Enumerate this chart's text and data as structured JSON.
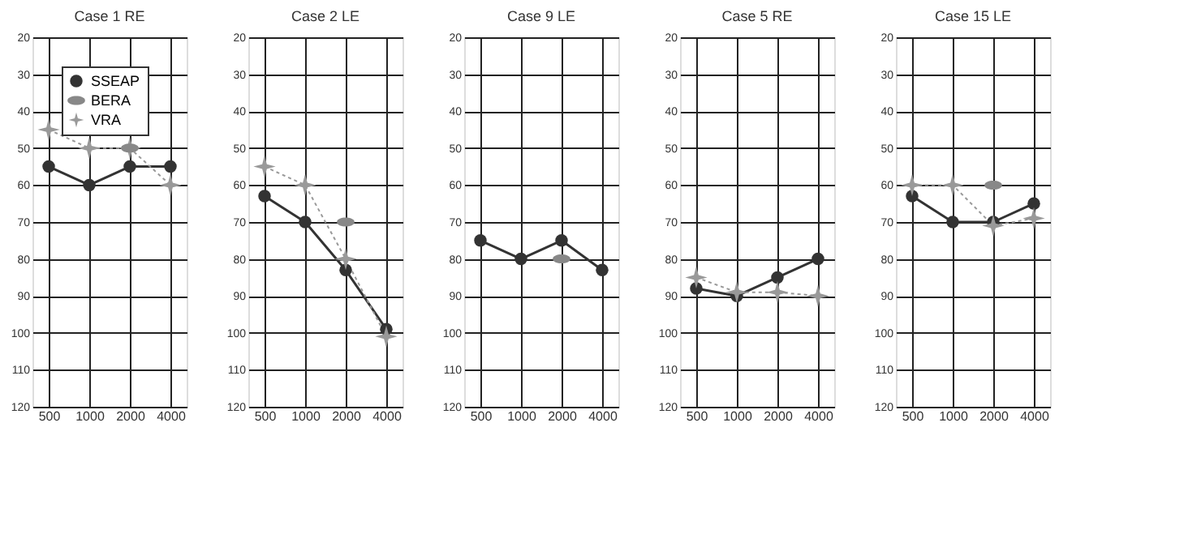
{
  "chart_data": [
    {
      "type": "line",
      "title": "Case 1 RE",
      "categories": [
        "500",
        "1000",
        "2000",
        "4000"
      ],
      "ylim": [
        120,
        20
      ],
      "yticks": [
        20,
        30,
        40,
        50,
        60,
        70,
        80,
        90,
        100,
        110,
        120
      ],
      "grid": true,
      "legend": "top left",
      "series": [
        {
          "name": "SSEAP",
          "type": "line",
          "color": "#333333",
          "marker": "circle",
          "line_style": "solid",
          "values": [
            55,
            60,
            55,
            55
          ]
        },
        {
          "name": "BERA",
          "type": "scatter",
          "color": "#888888",
          "values": [
            null,
            null,
            50,
            null
          ]
        },
        {
          "name": "VRA",
          "type": "line",
          "color": "#999999",
          "marker": "star",
          "line_style": "dotted",
          "values": [
            45,
            50,
            50,
            60
          ]
        }
      ]
    },
    {
      "type": "line",
      "title": "Case 2 LE",
      "categories": [
        "500",
        "1000",
        "2000",
        "4000"
      ],
      "ylim": [
        120,
        20
      ],
      "yticks": [
        20,
        30,
        40,
        50,
        60,
        70,
        80,
        90,
        100,
        110,
        120
      ],
      "grid": true,
      "legend": false,
      "series": [
        {
          "type": "line",
          "color": "#333333",
          "marker": "circle",
          "line_style": "solid",
          "values": [
            63,
            70,
            83,
            99
          ]
        },
        {
          "type": "scatter",
          "color": "#888888",
          "values": [
            null,
            null,
            70,
            null
          ]
        },
        {
          "type": "line",
          "color": "#999999",
          "marker": "star",
          "line_style": "dotted",
          "values": [
            55,
            60,
            80,
            101
          ]
        }
      ]
    },
    {
      "type": "line",
      "title": "Case 9 LE",
      "categories": [
        "500",
        "1000",
        "2000",
        "4000"
      ],
      "ylim": [
        120,
        20
      ],
      "yticks": [
        20,
        30,
        40,
        50,
        60,
        70,
        80,
        90,
        100,
        110,
        120
      ],
      "grid": true,
      "legend": false,
      "series": [
        {
          "type": "line",
          "color": "#333333",
          "marker": "circle",
          "line_style": "solid",
          "values": [
            75,
            80,
            75,
            83
          ]
        },
        {
          "type": "scatter",
          "color": "#888888",
          "values": [
            null,
            null,
            80,
            null
          ]
        }
      ]
    },
    {
      "type": "line",
      "title": "Case 5 RE",
      "categories": [
        "500",
        "1000",
        "2000",
        "4000"
      ],
      "ylim": [
        120,
        20
      ],
      "yticks": [
        20,
        30,
        40,
        50,
        60,
        70,
        80,
        90,
        100,
        110,
        120
      ],
      "grid": true,
      "legend": false,
      "series": [
        {
          "type": "line",
          "color": "#333333",
          "marker": "circle",
          "line_style": "solid",
          "values": [
            88,
            90,
            85,
            80
          ]
        },
        {
          "type": "line",
          "color": "#999999",
          "marker": "star",
          "line_style": "dotted",
          "values": [
            85,
            89,
            89,
            90
          ]
        }
      ]
    },
    {
      "type": "line",
      "title": "Case 15 LE",
      "categories": [
        "500",
        "1000",
        "2000",
        "4000"
      ],
      "ylim": [
        120,
        20
      ],
      "yticks": [
        20,
        30,
        40,
        50,
        60,
        70,
        80,
        90,
        100,
        110,
        120
      ],
      "grid": true,
      "legend": false,
      "series": [
        {
          "type": "line",
          "color": "#333333",
          "marker": "circle",
          "line_style": "solid",
          "values": [
            63,
            70,
            70,
            65
          ]
        },
        {
          "type": "scatter",
          "color": "#888888",
          "values": [
            null,
            null,
            60,
            null
          ]
        },
        {
          "type": "line",
          "color": "#999999",
          "marker": "star",
          "line_style": "dotted",
          "values": [
            60,
            60,
            71,
            69
          ]
        }
      ]
    }
  ]
}
